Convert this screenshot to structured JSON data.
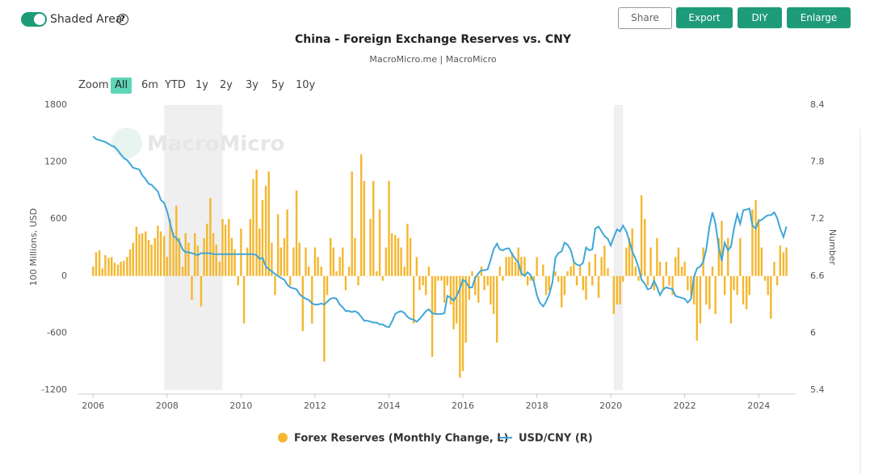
{
  "toolbar": {
    "shaded_toggle": "Shaded Area",
    "buttons": [
      "Share",
      "Export",
      "DIY",
      "Enlarge"
    ]
  },
  "zoom": {
    "label": "Zoom",
    "options": [
      "All",
      "6m",
      "YTD",
      "1y",
      "2y",
      "3y",
      "5y",
      "10y"
    ],
    "active_index": 0
  },
  "watermark": "MacroMicro",
  "chart_data": {
    "type": "combo",
    "title": "China - Foreign Exchange Reserves vs. CNY",
    "subtitle": "MacroMicro.me | MacroMicro",
    "ylabel": "100 Millions, USD",
    "y2label": "Number",
    "xlim": [
      2005.6,
      2025.0
    ],
    "xticks": [
      2006,
      2008,
      2010,
      2012,
      2014,
      2016,
      2018,
      2020,
      2022,
      2024
    ],
    "ylim": [
      -1200,
      1800
    ],
    "yticks": [
      -1200,
      -600,
      0,
      600,
      1200,
      1800
    ],
    "y2lim": [
      5.4,
      8.4
    ],
    "y2ticks": [
      5.4,
      6,
      6.6,
      7.2,
      7.8,
      8.4
    ],
    "shaded_areas": [
      [
        2007.92,
        2009.5
      ],
      [
        2020.08,
        2020.33
      ]
    ],
    "x": [
      2006,
      2006.08,
      2006.17,
      2006.25,
      2006.33,
      2006.42,
      2006.5,
      2006.58,
      2006.67,
      2006.75,
      2006.83,
      2006.92,
      2007,
      2007.08,
      2007.17,
      2007.25,
      2007.33,
      2007.42,
      2007.5,
      2007.58,
      2007.67,
      2007.75,
      2007.83,
      2007.92,
      2008,
      2008.08,
      2008.17,
      2008.25,
      2008.33,
      2008.42,
      2008.5,
      2008.58,
      2008.67,
      2008.75,
      2008.83,
      2008.92,
      2009,
      2009.08,
      2009.17,
      2009.25,
      2009.33,
      2009.42,
      2009.5,
      2009.58,
      2009.67,
      2009.75,
      2009.83,
      2009.92,
      2010,
      2010.08,
      2010.17,
      2010.25,
      2010.33,
      2010.42,
      2010.5,
      2010.58,
      2010.67,
      2010.75,
      2010.83,
      2010.92,
      2011,
      2011.08,
      2011.17,
      2011.25,
      2011.33,
      2011.42,
      2011.5,
      2011.58,
      2011.67,
      2011.75,
      2011.83,
      2011.92,
      2012,
      2012.08,
      2012.17,
      2012.25,
      2012.33,
      2012.42,
      2012.5,
      2012.58,
      2012.67,
      2012.75,
      2012.83,
      2012.92,
      2013,
      2013.08,
      2013.17,
      2013.25,
      2013.33,
      2013.42,
      2013.5,
      2013.58,
      2013.67,
      2013.75,
      2013.83,
      2013.92,
      2014,
      2014.08,
      2014.17,
      2014.25,
      2014.33,
      2014.42,
      2014.5,
      2014.58,
      2014.67,
      2014.75,
      2014.83,
      2014.92,
      2015,
      2015.08,
      2015.17,
      2015.25,
      2015.33,
      2015.42,
      2015.5,
      2015.58,
      2015.67,
      2015.75,
      2015.83,
      2015.92,
      2016,
      2016.08,
      2016.17,
      2016.25,
      2016.33,
      2016.42,
      2016.5,
      2016.58,
      2016.67,
      2016.75,
      2016.83,
      2016.92,
      2017,
      2017.08,
      2017.17,
      2017.25,
      2017.33,
      2017.42,
      2017.5,
      2017.58,
      2017.67,
      2017.75,
      2017.83,
      2017.92,
      2018,
      2018.08,
      2018.17,
      2018.25,
      2018.33,
      2018.42,
      2018.5,
      2018.58,
      2018.67,
      2018.75,
      2018.83,
      2018.92,
      2019,
      2019.08,
      2019.17,
      2019.25,
      2019.33,
      2019.42,
      2019.5,
      2019.58,
      2019.67,
      2019.75,
      2019.83,
      2019.92,
      2020,
      2020.08,
      2020.17,
      2020.25,
      2020.33,
      2020.42,
      2020.5,
      2020.58,
      2020.67,
      2020.75,
      2020.83,
      2020.92,
      2021,
      2021.08,
      2021.17,
      2021.25,
      2021.33,
      2021.42,
      2021.5,
      2021.58,
      2021.67,
      2021.75,
      2021.83,
      2021.92,
      2022,
      2022.08,
      2022.17,
      2022.25,
      2022.33,
      2022.42,
      2022.5,
      2022.58,
      2022.67,
      2022.75,
      2022.83,
      2022.92,
      2023,
      2023.08,
      2023.17,
      2023.25,
      2023.33,
      2023.42,
      2023.5,
      2023.58,
      2023.67,
      2023.75,
      2023.83,
      2023.92,
      2024,
      2024.08,
      2024.17,
      2024.25,
      2024.33,
      2024.42,
      2024.5,
      2024.58,
      2024.67,
      2024.75
    ],
    "series": [
      {
        "name": "Forex Reserves (Monthly Change, L)",
        "type": "bar",
        "color": "#f4b72f",
        "axis": "y",
        "values": [
          100,
          250,
          270,
          80,
          220,
          190,
          200,
          140,
          120,
          150,
          160,
          200,
          280,
          350,
          520,
          440,
          450,
          470,
          380,
          330,
          400,
          530,
          470,
          420,
          200,
          600,
          460,
          740,
          400,
          100,
          450,
          350,
          -250,
          450,
          320,
          -320,
          400,
          550,
          820,
          450,
          330,
          150,
          600,
          540,
          600,
          400,
          280,
          -100,
          500,
          -500,
          300,
          600,
          1020,
          1120,
          500,
          800,
          950,
          1100,
          350,
          -200,
          650,
          300,
          400,
          700,
          -100,
          300,
          900,
          350,
          -580,
          300,
          100,
          -500,
          300,
          200,
          100,
          -900,
          -200,
          400,
          300,
          50,
          200,
          300,
          -150,
          100,
          1100,
          400,
          -100,
          1280,
          1000,
          0,
          600,
          1000,
          50,
          700,
          -50,
          300,
          1000,
          450,
          430,
          400,
          300,
          100,
          550,
          400,
          -500,
          200,
          -150,
          -100,
          -200,
          100,
          -850,
          -400,
          -50,
          -50,
          -280,
          -100,
          -300,
          -560,
          -500,
          -1070,
          -1000,
          -700,
          -250,
          50,
          -200,
          -280,
          100,
          -150,
          -100,
          -300,
          -400,
          -700,
          100,
          -50,
          200,
          200,
          250,
          150,
          300,
          200,
          200,
          -100,
          -50,
          -50,
          200,
          0,
          120,
          -200,
          -150,
          0,
          50,
          -60,
          -330,
          -200,
          50,
          100,
          150,
          -100,
          100,
          -150,
          -250,
          150,
          -100,
          230,
          -230,
          200,
          320,
          80,
          0,
          -400,
          -300,
          -300,
          -60,
          300,
          400,
          500,
          100,
          -50,
          850,
          600,
          -100,
          300,
          -150,
          400,
          150,
          -150,
          150,
          -100,
          -200,
          200,
          300,
          100,
          150,
          -150,
          -200,
          -300,
          -680,
          -500,
          300,
          -300,
          -350,
          100,
          -400,
          400,
          580,
          -200,
          400,
          -500,
          -150,
          -200,
          400,
          -300,
          -350,
          -200,
          700,
          800,
          600,
          300,
          -50,
          -200,
          -450,
          150,
          -100,
          320,
          250,
          300
        ]
      },
      {
        "name": "USD/CNY (R)",
        "type": "line",
        "color": "#3ea6d8",
        "axis": "y2",
        "values": [
          8.07,
          8.04,
          8.03,
          8.02,
          8.01,
          7.99,
          7.97,
          7.96,
          7.92,
          7.88,
          7.84,
          7.82,
          7.78,
          7.74,
          7.73,
          7.72,
          7.66,
          7.62,
          7.57,
          7.56,
          7.52,
          7.49,
          7.4,
          7.37,
          7.28,
          7.16,
          7.02,
          7.0,
          6.96,
          6.88,
          6.85,
          6.85,
          6.84,
          6.83,
          6.82,
          6.84,
          6.84,
          6.84,
          6.84,
          6.83,
          6.83,
          6.83,
          6.83,
          6.83,
          6.83,
          6.83,
          6.83,
          6.83,
          6.83,
          6.83,
          6.83,
          6.83,
          6.83,
          6.82,
          6.78,
          6.79,
          6.7,
          6.67,
          6.65,
          6.62,
          6.6,
          6.58,
          6.56,
          6.51,
          6.48,
          6.47,
          6.46,
          6.41,
          6.38,
          6.36,
          6.35,
          6.31,
          6.3,
          6.3,
          6.31,
          6.3,
          6.33,
          6.36,
          6.37,
          6.36,
          6.3,
          6.27,
          6.23,
          6.23,
          6.22,
          6.23,
          6.21,
          6.17,
          6.13,
          6.13,
          6.12,
          6.11,
          6.11,
          6.09,
          6.09,
          6.07,
          6.06,
          6.12,
          6.2,
          6.22,
          6.23,
          6.21,
          6.17,
          6.15,
          6.14,
          6.12,
          6.15,
          6.19,
          6.23,
          6.25,
          6.21,
          6.2,
          6.2,
          6.2,
          6.21,
          6.39,
          6.37,
          6.34,
          6.39,
          6.47,
          6.56,
          6.54,
          6.48,
          6.48,
          6.58,
          6.63,
          6.66,
          6.66,
          6.67,
          6.77,
          6.88,
          6.94,
          6.88,
          6.87,
          6.89,
          6.89,
          6.83,
          6.78,
          6.74,
          6.63,
          6.6,
          6.64,
          6.61,
          6.54,
          6.4,
          6.32,
          6.28,
          6.33,
          6.4,
          6.53,
          6.79,
          6.84,
          6.86,
          6.95,
          6.93,
          6.87,
          6.75,
          6.72,
          6.71,
          6.74,
          6.9,
          6.87,
          6.88,
          7.1,
          7.12,
          7.07,
          7.02,
          6.99,
          6.92,
          7.01,
          7.09,
          7.07,
          7.13,
          7.07,
          6.97,
          6.86,
          6.78,
          6.69,
          6.56,
          6.52,
          6.46,
          6.47,
          6.55,
          6.48,
          6.4,
          6.46,
          6.48,
          6.47,
          6.46,
          6.39,
          6.38,
          6.37,
          6.36,
          6.32,
          6.36,
          6.59,
          6.68,
          6.7,
          6.75,
          6.88,
          7.12,
          7.27,
          7.15,
          6.9,
          6.76,
          6.95,
          6.87,
          6.91,
          7.1,
          7.25,
          7.15,
          7.29,
          7.3,
          7.31,
          7.13,
          7.1,
          7.18,
          7.19,
          7.22,
          7.24,
          7.24,
          7.27,
          7.21,
          7.1,
          7.01,
          7.12
        ]
      }
    ]
  }
}
